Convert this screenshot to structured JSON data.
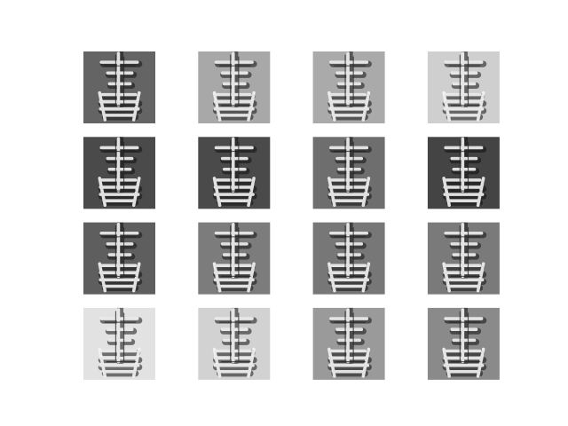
{
  "images": [
    {
      "background": "#646464"
    },
    {
      "background": "#a8a8a8"
    },
    {
      "background": "#aaaaaa"
    },
    {
      "background": "#cfcfcf"
    },
    {
      "background": "#4a4a4a"
    },
    {
      "background": "#4a4a4a"
    },
    {
      "background": "#6e6e6e"
    },
    {
      "background": "#444444"
    },
    {
      "background": "#5e5e5e"
    },
    {
      "background": "#7c7c7c"
    },
    {
      "background": "#777777"
    },
    {
      "background": "#7a7a7a"
    },
    {
      "background": "#e2e2e2"
    },
    {
      "background": "#d2d2d2"
    },
    {
      "background": "#9a9a9a"
    },
    {
      "background": "#8a8a8a"
    }
  ]
}
